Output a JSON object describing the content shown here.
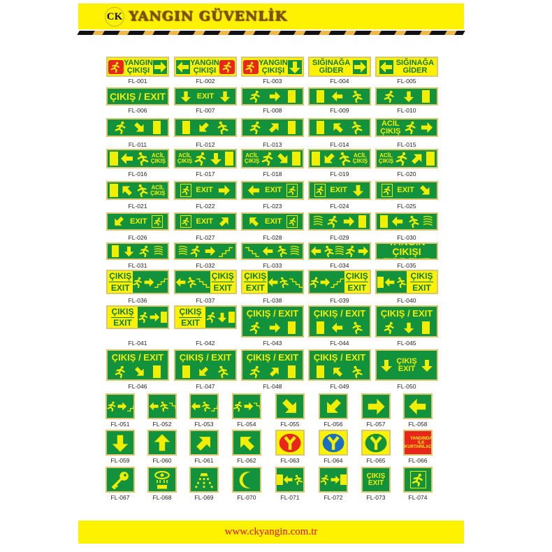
{
  "header": {
    "logo": "CK",
    "brand": "YANGIN GÜVENLİK"
  },
  "footer": {
    "url": "www.ckyangin.com.tr"
  },
  "colors": {
    "sign_green": "#12923c",
    "sign_yellow": "#f2ee00",
    "banner_yellow": "#fff200",
    "url_red": "#e01010"
  },
  "signs": [
    {
      "code": "FL-001",
      "scheme": "yellow",
      "parts": [
        "fire",
        {
          "text": "YANGIN\nÇIKIŞI"
        },
        "arrow-right-box"
      ]
    },
    {
      "code": "FL-002",
      "scheme": "yellow",
      "parts": [
        "arrow-left-box",
        {
          "text": "YANGIN\nÇIKIŞI"
        },
        "fire"
      ]
    },
    {
      "code": "FL-003",
      "scheme": "yellow",
      "parts": [
        "fire",
        {
          "text": "YANGIN\nÇIKIŞI"
        },
        "arrow-down-box"
      ]
    },
    {
      "code": "FL-004",
      "scheme": "yellow",
      "parts": [
        {
          "text": "SIĞINAĞA\nGİDER"
        },
        "arrow-right-box"
      ]
    },
    {
      "code": "FL-005",
      "scheme": "yellow",
      "parts": [
        "arrow-left-box",
        {
          "text": "SIĞINAĞA\nGİDER"
        }
      ]
    },
    {
      "code": "FL-006",
      "scheme": "green",
      "parts": [
        {
          "text": "ÇIKIŞ / EXIT"
        }
      ]
    },
    {
      "code": "FL-007",
      "scheme": "green",
      "parts": [
        "arrow-down",
        {
          "text": "EXIT"
        },
        "arrow-down"
      ]
    },
    {
      "code": "FL-008",
      "scheme": "green",
      "parts": [
        "runner",
        "arrow-right",
        "door"
      ]
    },
    {
      "code": "FL-009",
      "scheme": "green",
      "parts": [
        "door",
        "arrow-left",
        "runner-left"
      ]
    },
    {
      "code": "FL-010",
      "scheme": "green",
      "parts": [
        "runner",
        "arrow-down",
        "door"
      ]
    },
    {
      "code": "FL-011",
      "scheme": "green",
      "parts": [
        "runner",
        "arrow-down-right",
        "door"
      ]
    },
    {
      "code": "FL-012",
      "scheme": "green",
      "parts": [
        "door",
        "arrow-down-left",
        "runner-left"
      ]
    },
    {
      "code": "FL-013",
      "scheme": "green",
      "parts": [
        "runner",
        "arrow-up-right",
        "door"
      ]
    },
    {
      "code": "FL-014",
      "scheme": "green",
      "parts": [
        "door",
        "arrow-up-left",
        "runner-left"
      ]
    },
    {
      "code": "FL-015",
      "scheme": "green",
      "parts": [
        {
          "text": "ACİL\nÇIKIŞ"
        },
        "runner",
        "arrow-right"
      ]
    },
    {
      "code": "FL-016",
      "scheme": "green",
      "parts": [
        "door",
        "arrow-left",
        "runner-left",
        {
          "text": "ACİL\nÇIKIŞ"
        }
      ]
    },
    {
      "code": "FL-017",
      "scheme": "green",
      "parts": [
        {
          "text": "ACİL\nÇIKIŞ"
        },
        "runner",
        "arrow-down",
        "door"
      ]
    },
    {
      "code": "FL-018",
      "scheme": "green",
      "parts": [
        {
          "text": "ACİL\nÇIKIŞ"
        },
        "runner",
        "arrow-down-right",
        "door"
      ]
    },
    {
      "code": "FL-019",
      "scheme": "green",
      "parts": [
        "door",
        "arrow-down-left",
        "runner-left",
        {
          "text": "ACİL\nÇIKIŞ"
        }
      ]
    },
    {
      "code": "FL-020",
      "scheme": "green",
      "parts": [
        {
          "text": "ACİL\nÇIKIŞ"
        },
        "runner",
        "arrow-up-right",
        "door"
      ]
    },
    {
      "code": "FL-021",
      "scheme": "green",
      "parts": [
        "door",
        "arrow-up-left",
        "runner-left",
        {
          "text": "ACİL\nÇIKIŞ"
        }
      ]
    },
    {
      "code": "FL-022",
      "scheme": "green",
      "parts": [
        "exit-man",
        {
          "text": "EXIT"
        },
        "arrow-right"
      ]
    },
    {
      "code": "FL-023",
      "scheme": "green",
      "parts": [
        "arrow-left",
        {
          "text": "EXIT"
        },
        "exit-man"
      ]
    },
    {
      "code": "FL-024",
      "scheme": "green",
      "parts": [
        "exit-man",
        {
          "text": "EXIT"
        },
        "arrow-down"
      ]
    },
    {
      "code": "FL-025",
      "scheme": "green",
      "parts": [
        "exit-man",
        {
          "text": "EXIT"
        },
        "arrow-down-right"
      ]
    },
    {
      "code": "FL-026",
      "scheme": "green",
      "parts": [
        "arrow-down-left",
        {
          "text": "EXIT"
        },
        "exit-man"
      ]
    },
    {
      "code": "FL-027",
      "scheme": "green",
      "parts": [
        "exit-man",
        {
          "text": "EXIT"
        },
        "arrow-up-right"
      ]
    },
    {
      "code": "FL-028",
      "scheme": "green",
      "parts": [
        "arrow-up-left",
        {
          "text": "EXIT"
        },
        "exit-man"
      ]
    },
    {
      "code": "FL-029",
      "scheme": "green",
      "parts": [
        "waves",
        "runner",
        "arrow-right",
        "door"
      ]
    },
    {
      "code": "FL-030",
      "scheme": "green",
      "parts": [
        "door",
        "arrow-left",
        "runner-left",
        "waves"
      ]
    },
    {
      "code": "FL-031",
      "scheme": "green",
      "parts": [
        "door",
        "arrow-down",
        "runner",
        "waves"
      ]
    },
    {
      "code": "FL-032",
      "scheme": "green",
      "parts": [
        "waves",
        "runner",
        "arrow-right",
        "stairs"
      ]
    },
    {
      "code": "FL-033",
      "scheme": "green",
      "parts": [
        "stairs-left",
        "arrow-left",
        "runner-left",
        "waves"
      ]
    },
    {
      "code": "FL-034",
      "scheme": "green",
      "parts": [
        "arrow-left",
        "runner-left",
        "waves",
        "runner",
        "arrow-right"
      ]
    },
    {
      "code": "FL-035",
      "scheme": "green",
      "parts": [
        {
          "text": "YANGIN ÇIKIŞI\nFIRE EXIT"
        }
      ]
    },
    {
      "code": "FL-036",
      "scheme": "split",
      "text_side": "left",
      "label_top": "ÇIKIŞ",
      "label_bottom": "EXIT",
      "parts": [
        "runner",
        "arrow-right",
        "stairs"
      ]
    },
    {
      "code": "FL-037",
      "scheme": "split",
      "text_side": "right",
      "label_top": "ÇIKIŞ",
      "label_bottom": "EXIT",
      "parts": [
        "arrow-left",
        "runner-left",
        "stairs-left"
      ]
    },
    {
      "code": "FL-038",
      "scheme": "split",
      "text_side": "left",
      "label_top": "ÇIKIŞ",
      "label_bottom": "EXIT",
      "parts": [
        "arrow-left",
        "runner-left",
        "stairs-left"
      ]
    },
    {
      "code": "FL-039",
      "scheme": "split",
      "text_side": "right",
      "label_top": "ÇIKIŞ",
      "label_bottom": "EXIT",
      "parts": [
        "runner",
        "arrow-right",
        "stairs"
      ]
    },
    {
      "code": "FL-040",
      "scheme": "split",
      "text_side": "right",
      "label_top": "ÇIKIŞ",
      "label_bottom": "EXIT",
      "parts": [
        "door",
        "arrow-left",
        "runner-left"
      ]
    },
    {
      "code": "FL-041",
      "scheme": "split",
      "text_side": "left",
      "label_top": "ÇIKIŞ",
      "label_bottom": "EXIT",
      "parts": [
        "runner",
        "arrow-right",
        "door"
      ]
    },
    {
      "code": "FL-042",
      "scheme": "split",
      "text_side": "left",
      "label_top": "ÇIKIŞ",
      "label_bottom": "EXIT",
      "parts": [
        "runner",
        "arrow-down",
        "door"
      ]
    },
    {
      "code": "FL-043",
      "scheme": "titled",
      "title": "ÇIKIŞ / EXIT",
      "parts": [
        "runner",
        "arrow-right",
        "door"
      ]
    },
    {
      "code": "FL-044",
      "scheme": "titled",
      "title": "ÇIKIŞ / EXIT",
      "parts": [
        "door",
        "arrow-left",
        "runner-left"
      ]
    },
    {
      "code": "FL-045",
      "scheme": "titled",
      "title": "ÇIKIŞ / EXIT",
      "parts": [
        "runner",
        "arrow-down",
        "door"
      ]
    },
    {
      "code": "FL-046",
      "scheme": "titled",
      "title": "ÇIKIŞ / EXIT",
      "parts": [
        "runner",
        "arrow-down-right",
        "door"
      ]
    },
    {
      "code": "FL-047",
      "scheme": "titled",
      "title": "ÇIKIŞ / EXIT",
      "parts": [
        "door",
        "arrow-down-left",
        "runner-left"
      ]
    },
    {
      "code": "FL-048",
      "scheme": "titled",
      "title": "ÇIKIŞ / EXIT",
      "parts": [
        "runner",
        "arrow-up-right",
        "door"
      ]
    },
    {
      "code": "FL-049",
      "scheme": "titled",
      "title": "ÇIKIŞ / EXIT",
      "parts": [
        "door",
        "arrow-up-left",
        "runner-left"
      ]
    },
    {
      "code": "FL-050",
      "scheme": "green",
      "parts": [
        "arrow-down",
        {
          "text": "ÇIKIŞ\nEXIT"
        },
        "arrow-down"
      ]
    },
    {
      "code": "FL-051",
      "scheme": "green",
      "parts": [
        "runner",
        "arrow-right",
        "stairs"
      ]
    },
    {
      "code": "FL-052",
      "scheme": "green",
      "parts": [
        "arrow-left",
        "runner-left",
        "stairs-left"
      ]
    },
    {
      "code": "FL-053",
      "scheme": "green",
      "parts": [
        "arrow-left",
        "runner-left",
        "stairs"
      ]
    },
    {
      "code": "FL-054",
      "scheme": "green",
      "parts": [
        "runner",
        "arrow-right",
        "stairs-left"
      ]
    },
    {
      "code": "FL-055",
      "scheme": "green",
      "parts": [
        "arrow-down-right"
      ]
    },
    {
      "code": "FL-056",
      "scheme": "green",
      "parts": [
        "arrow-down-left"
      ]
    },
    {
      "code": "FL-057",
      "scheme": "green",
      "parts": [
        "arrow-right"
      ]
    },
    {
      "code": "FL-058",
      "scheme": "green",
      "parts": [
        "arrow-left"
      ]
    },
    {
      "code": "FL-059",
      "scheme": "green",
      "parts": [
        "arrow-down"
      ]
    },
    {
      "code": "FL-060",
      "scheme": "green",
      "parts": [
        "arrow-up"
      ]
    },
    {
      "code": "FL-061",
      "scheme": "green",
      "parts": [
        "arrow-up-right"
      ]
    },
    {
      "code": "FL-062",
      "scheme": "green",
      "parts": [
        "arrow-up-left"
      ]
    },
    {
      "code": "FL-063",
      "scheme": "yellow",
      "parts": [
        "y-circle-red"
      ]
    },
    {
      "code": "FL-064",
      "scheme": "yellow",
      "parts": [
        "y-circle-blue"
      ]
    },
    {
      "code": "FL-065",
      "scheme": "yellow",
      "parts": [
        "y-circle-green"
      ]
    },
    {
      "code": "FL-066",
      "scheme": "red",
      "parts": [
        {
          "text": "YANGINDA\nİLK\nKURTARILACAK"
        }
      ]
    },
    {
      "code": "FL-067",
      "scheme": "green",
      "parts": [
        "key"
      ]
    },
    {
      "code": "FL-068",
      "scheme": "green",
      "parts": [
        "eye-wash"
      ]
    },
    {
      "code": "FL-069",
      "scheme": "green",
      "parts": [
        "shower"
      ]
    },
    {
      "code": "FL-070",
      "scheme": "green",
      "parts": [
        "crescent"
      ]
    },
    {
      "code": "FL-071",
      "scheme": "green",
      "parts": [
        "door",
        "arrow-left",
        "runner-left"
      ]
    },
    {
      "code": "FL-072",
      "scheme": "green",
      "parts": [
        "runner",
        "arrow-right",
        "door"
      ]
    },
    {
      "code": "FL-073",
      "scheme": "green",
      "parts": [
        {
          "text": "ÇIKIŞ\nEXIT"
        }
      ]
    },
    {
      "code": "FL-074",
      "scheme": "green",
      "parts": [
        "exit-man"
      ]
    }
  ]
}
